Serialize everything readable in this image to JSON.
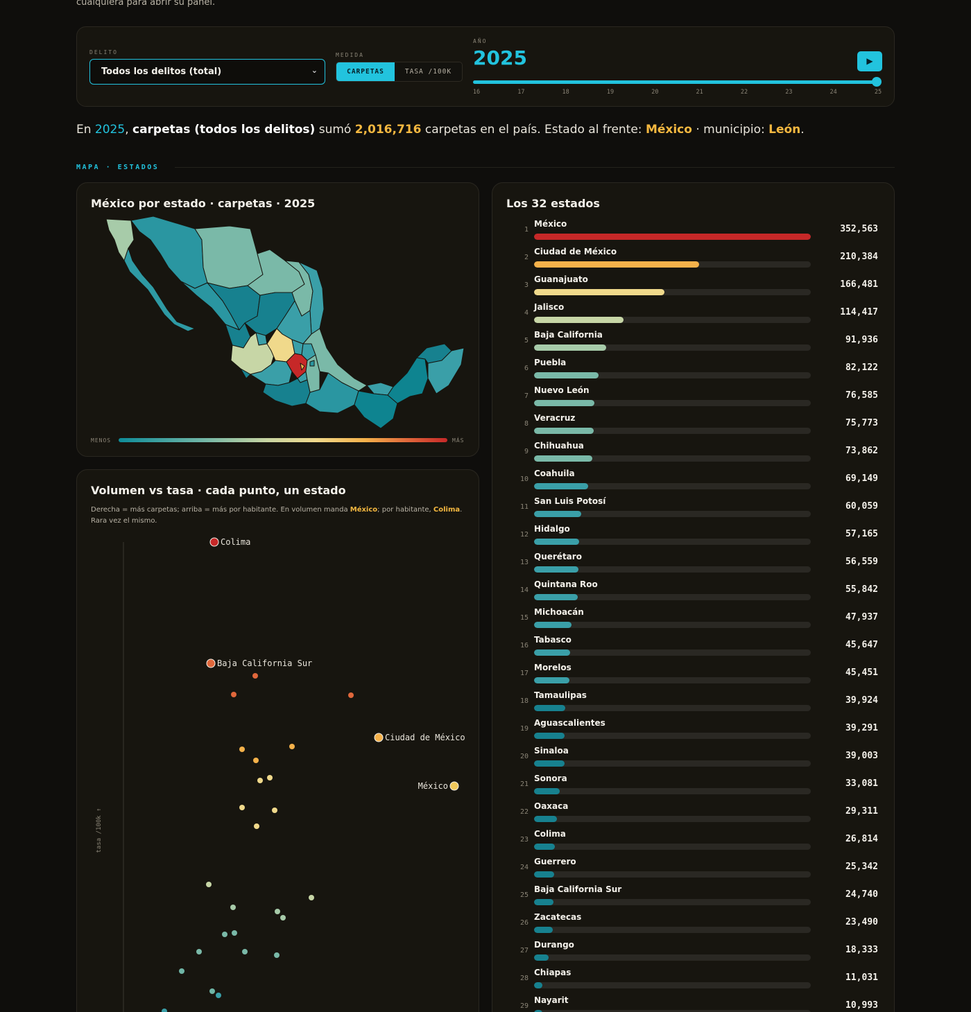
{
  "intro_text": "cualquiera para abrir su panel.",
  "controls": {
    "delito_label": "DELITO",
    "delito_value": "Todos los delitos (total)",
    "medida_label": "MEDIDA",
    "medida_options": [
      "CARPETAS",
      "TASA /100K"
    ],
    "medida_selected": "CARPETAS",
    "year_label": "AÑO",
    "year_value": "2025",
    "year_ticks": [
      "16",
      "17",
      "18",
      "19",
      "20",
      "21",
      "22",
      "23",
      "24",
      "25"
    ],
    "year_progress": 1.0,
    "play_icon": "play-icon",
    "accent": "#22c3de"
  },
  "headline": {
    "p1": "En ",
    "year": "2025",
    "p2": ", ",
    "measure": "carpetas (todos los delitos)",
    "p3": " sumó ",
    "total": "2,016,716",
    "p4": " carpetas en el país. Estado al frente: ",
    "top_state": "México",
    "p5": " · municipio: ",
    "top_municipio": "León",
    "p6": "."
  },
  "section": {
    "title": "MAPA · ESTADOS"
  },
  "map": {
    "title": "México por estado · carpetas · 2025",
    "legend_min": "MENOS",
    "legend_max": "MÁS"
  },
  "scatter": {
    "title": "Volumen vs tasa · cada punto, un estado",
    "subtitle_1": "Derecha = más carpetas; arriba = más por habitante. En volumen manda ",
    "subtitle_hl1": "México",
    "subtitle_2": "; por habitante, ",
    "subtitle_hl2": "Colima",
    "subtitle_3": ". Rara vez el mismo.",
    "ylabel": "tasa /100k ↑",
    "labels": [
      "Colima",
      "Baja California Sur",
      "Ciudad de México",
      "México"
    ]
  },
  "ranking": {
    "title": "Los 32 estados",
    "max": 352563,
    "rows": [
      {
        "rank": "1",
        "name": "México",
        "value": 352563,
        "label": "352,563"
      },
      {
        "rank": "2",
        "name": "Ciudad de México",
        "value": 210384,
        "label": "210,384"
      },
      {
        "rank": "3",
        "name": "Guanajuato",
        "value": 166481,
        "label": "166,481"
      },
      {
        "rank": "4",
        "name": "Jalisco",
        "value": 114417,
        "label": "114,417"
      },
      {
        "rank": "5",
        "name": "Baja California",
        "value": 91936,
        "label": "91,936"
      },
      {
        "rank": "6",
        "name": "Puebla",
        "value": 82122,
        "label": "82,122"
      },
      {
        "rank": "7",
        "name": "Nuevo León",
        "value": 76585,
        "label": "76,585"
      },
      {
        "rank": "8",
        "name": "Veracruz",
        "value": 75773,
        "label": "75,773"
      },
      {
        "rank": "9",
        "name": "Chihuahua",
        "value": 73862,
        "label": "73,862"
      },
      {
        "rank": "10",
        "name": "Coahuila",
        "value": 69149,
        "label": "69,149"
      },
      {
        "rank": "11",
        "name": "San Luis Potosí",
        "value": 60059,
        "label": "60,059"
      },
      {
        "rank": "12",
        "name": "Hidalgo",
        "value": 57165,
        "label": "57,165"
      },
      {
        "rank": "13",
        "name": "Querétaro",
        "value": 56559,
        "label": "56,559"
      },
      {
        "rank": "14",
        "name": "Quintana Roo",
        "value": 55842,
        "label": "55,842"
      },
      {
        "rank": "15",
        "name": "Michoacán",
        "value": 47937,
        "label": "47,937"
      },
      {
        "rank": "16",
        "name": "Tabasco",
        "value": 45647,
        "label": "45,647"
      },
      {
        "rank": "17",
        "name": "Morelos",
        "value": 45451,
        "label": "45,451"
      },
      {
        "rank": "18",
        "name": "Tamaulipas",
        "value": 39924,
        "label": "39,924"
      },
      {
        "rank": "19",
        "name": "Aguascalientes",
        "value": 39291,
        "label": "39,291"
      },
      {
        "rank": "20",
        "name": "Sinaloa",
        "value": 39003,
        "label": "39,003"
      },
      {
        "rank": "21",
        "name": "Sonora",
        "value": 33081,
        "label": "33,081"
      },
      {
        "rank": "22",
        "name": "Oaxaca",
        "value": 29311,
        "label": "29,311"
      },
      {
        "rank": "23",
        "name": "Colima",
        "value": 26814,
        "label": "26,814"
      },
      {
        "rank": "24",
        "name": "Guerrero",
        "value": 25342,
        "label": "25,342"
      },
      {
        "rank": "25",
        "name": "Baja California Sur",
        "value": 24740,
        "label": "24,740"
      },
      {
        "rank": "26",
        "name": "Zacatecas",
        "value": 23490,
        "label": "23,490"
      },
      {
        "rank": "27",
        "name": "Durango",
        "value": 18333,
        "label": "18,333"
      },
      {
        "rank": "28",
        "name": "Chiapas",
        "value": 11031,
        "label": "11,031"
      },
      {
        "rank": "29",
        "name": "Nayarit",
        "value": 10993,
        "label": "10,993"
      }
    ]
  }
}
